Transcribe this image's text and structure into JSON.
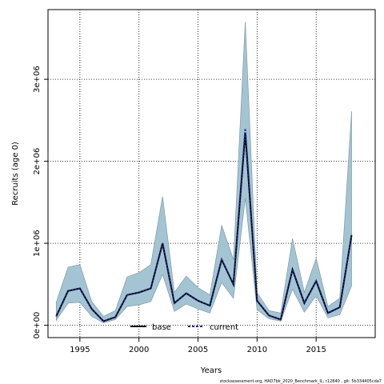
{
  "chart_data": {
    "type": "line",
    "xlabel": "Years",
    "ylabel": "Recruits (age 0)",
    "xlim": [
      1992.3,
      1020.0
    ],
    "ylim": [
      -150000,
      3850000
    ],
    "x_ticks": [
      1995,
      2000,
      2005,
      2010,
      2015
    ],
    "y_ticks": [
      {
        "value": 0,
        "label": "0e+00"
      },
      {
        "value": 1000000,
        "label": "1e+06"
      },
      {
        "value": 2000000,
        "label": "2e+06"
      },
      {
        "value": 3000000,
        "label": "3e+06"
      }
    ],
    "grid": true,
    "legend_position": "bottom",
    "x": [
      1993,
      1994,
      1995,
      1996,
      1997,
      1998,
      1999,
      2000,
      2001,
      2002,
      2003,
      2004,
      2005,
      2006,
      2007,
      2008,
      2009,
      2010,
      2011,
      2012,
      2013,
      2014,
      2015,
      2016,
      2017,
      2018
    ],
    "series": [
      {
        "name": "base",
        "values": [
          110000,
          420000,
          450000,
          200000,
          50000,
          100000,
          370000,
          400000,
          450000,
          1000000,
          270000,
          390000,
          300000,
          240000,
          800000,
          500000,
          2350000,
          300000,
          120000,
          70000,
          680000,
          270000,
          540000,
          150000,
          220000,
          1100000
        ]
      },
      {
        "name": "current",
        "values": [
          110000,
          420000,
          450000,
          200000,
          50000,
          100000,
          370000,
          400000,
          450000,
          1000000,
          270000,
          390000,
          300000,
          240000,
          800000,
          500000,
          2400000,
          300000,
          120000,
          70000,
          680000,
          270000,
          540000,
          150000,
          220000,
          1100000
        ]
      }
    ],
    "band_upper": [
      280000,
      710000,
      740000,
      290000,
      110000,
      180000,
      590000,
      640000,
      740000,
      1570000,
      400000,
      600000,
      460000,
      370000,
      1220000,
      800000,
      3700000,
      400000,
      180000,
      150000,
      1060000,
      400000,
      820000,
      230000,
      330000,
      2610000
    ],
    "band_lower": [
      60000,
      270000,
      280000,
      110000,
      30000,
      70000,
      230000,
      250000,
      290000,
      620000,
      170000,
      260000,
      200000,
      150000,
      520000,
      330000,
      1550000,
      190000,
      80000,
      50000,
      440000,
      160000,
      360000,
      90000,
      130000,
      480000
    ],
    "colors": {
      "band": "#a3c4d3",
      "band_edge": "#7f9aa6",
      "base": "#000000",
      "current": "#1a2a8a"
    },
    "footer": "stockassessment.org, HAD7bk_2020_Benchmark_IL, r12840 , git: 5b334405cda7"
  }
}
